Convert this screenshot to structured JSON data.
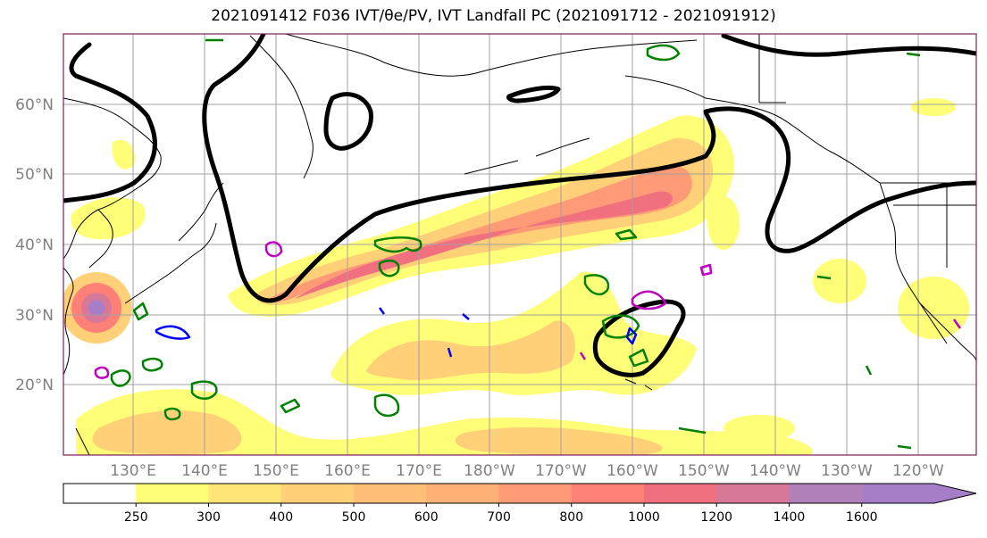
{
  "title": "2021091412 F036 IVT/θe/PV, IVT Landfall PC (2021091712 - 2021091912)",
  "map": {
    "lat_labels": [
      "60°N",
      "50°N",
      "40°N",
      "30°N",
      "20°N"
    ],
    "lon_labels": [
      "130°E",
      "140°E",
      "150°E",
      "160°E",
      "170°E",
      "180°W",
      "170°W",
      "160°W",
      "150°W",
      "140°W",
      "130°W",
      "120°W"
    ],
    "frame_color": "#7a1f5c",
    "grid_color": "#a0a0a0",
    "contour_colors": {
      "thick": "#000000",
      "green": "#008000",
      "blue": "#0000ff",
      "magenta": "#c000c0"
    }
  },
  "colorbar": {
    "levels": [
      "250",
      "300",
      "400",
      "500",
      "600",
      "700",
      "800",
      "1000",
      "1200",
      "1400",
      "1600"
    ],
    "colors": [
      "#ffffff",
      "#ffff77",
      "#ffe477",
      "#ffd077",
      "#ffbf77",
      "#ffb077",
      "#ff9a77",
      "#ff8077",
      "#f07080",
      "#d87898",
      "#b080b8",
      "#a67ec8"
    ]
  }
}
